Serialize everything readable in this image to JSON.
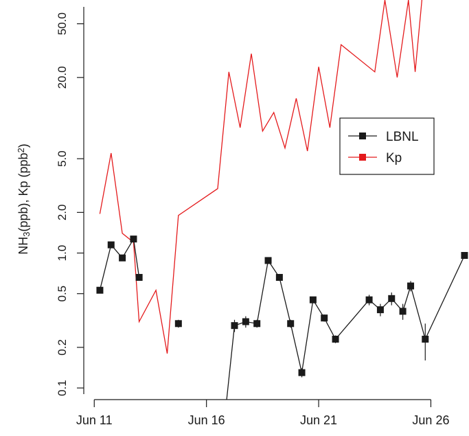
{
  "chart_data": {
    "type": "line",
    "yscale": "log",
    "ylabel_parts": [
      "NH",
      "3",
      "(ppb), Kp (ppb",
      "2",
      ")"
    ],
    "x_ticks": [
      {
        "x": 11,
        "label": "Jun 11"
      },
      {
        "x": 16,
        "label": "Jun 16"
      },
      {
        "x": 21,
        "label": "Jun 21"
      },
      {
        "x": 26,
        "label": "Jun 26"
      }
    ],
    "y_ticks": [
      0.1,
      0.2,
      0.5,
      1.0,
      2.0,
      5.0,
      20.0,
      50.0
    ],
    "y_tick_labels": [
      "0.1",
      "0.2",
      "0.5",
      "1.0",
      "2.0",
      "5.0",
      "20.0",
      "50.0"
    ],
    "xlim": [
      10.9,
      27.7
    ],
    "ylim": [
      0.082,
      75
    ],
    "legend_position": "right",
    "legend": [
      {
        "label": "LBNL",
        "color": "#1a1a1a",
        "marker": "square"
      },
      {
        "label": "Kp",
        "color": "#e41a1c",
        "marker": "square"
      }
    ],
    "series": [
      {
        "name": "Kp",
        "color": "#e41a1c",
        "marker": "none",
        "segments": [
          [
            [
              11.25,
              1.95
            ],
            [
              11.75,
              5.5
            ],
            [
              12.25,
              1.4
            ],
            [
              12.75,
              1.2
            ],
            [
              13.0,
              0.31
            ],
            [
              13.75,
              0.53
            ],
            [
              14.25,
              0.18
            ],
            [
              14.75,
              1.9
            ],
            [
              16.5,
              3.0
            ],
            [
              17.0,
              22.0
            ],
            [
              17.5,
              8.5
            ],
            [
              18.0,
              30.0
            ],
            [
              18.5,
              8.0
            ],
            [
              19.0,
              11.0
            ],
            [
              19.5,
              6.0
            ],
            [
              20.0,
              14.0
            ],
            [
              20.5,
              5.7
            ],
            [
              21.0,
              24.0
            ],
            [
              21.5,
              8.5
            ],
            [
              22.0,
              35.0
            ],
            [
              23.5,
              22.0
            ],
            [
              23.95,
              75.0
            ],
            [
              24.5,
              20.0
            ],
            [
              25.0,
              75.0
            ],
            [
              25.3,
              22.0
            ],
            [
              25.6,
              75.0
            ]
          ]
        ]
      },
      {
        "name": "LBNL",
        "color": "#1a1a1a",
        "marker": "square",
        "segments": [
          [
            [
              11.25,
              0.53,
              0.0
            ],
            [
              11.75,
              1.15,
              0.0
            ],
            [
              12.25,
              0.92,
              0.0
            ],
            [
              12.75,
              1.27,
              0.0
            ],
            [
              13.0,
              0.66,
              0.0
            ]
          ],
          [
            [
              14.75,
              0.3,
              0.02
            ]
          ],
          [
            [
              16.9,
              0.082,
              0.0
            ],
            [
              17.25,
              0.29,
              0.03
            ],
            [
              17.75,
              0.31,
              0.03
            ],
            [
              18.25,
              0.3,
              0.02
            ],
            [
              18.75,
              0.88,
              0.04
            ],
            [
              19.25,
              0.66,
              0.03
            ],
            [
              19.75,
              0.3,
              0.02
            ],
            [
              20.25,
              0.13,
              0.01
            ],
            [
              20.75,
              0.45,
              0.02
            ],
            [
              21.25,
              0.33,
              0.02
            ],
            [
              21.75,
              0.23,
              0.015
            ],
            [
              23.25,
              0.45,
              0.04
            ],
            [
              23.75,
              0.38,
              0.04
            ],
            [
              24.25,
              0.46,
              0.05
            ],
            [
              24.75,
              0.37,
              0.05
            ],
            [
              25.1,
              0.57,
              0.05
            ],
            [
              25.75,
              0.23,
              0.07
            ],
            [
              27.5,
              0.96,
              0.0
            ]
          ]
        ]
      }
    ]
  }
}
